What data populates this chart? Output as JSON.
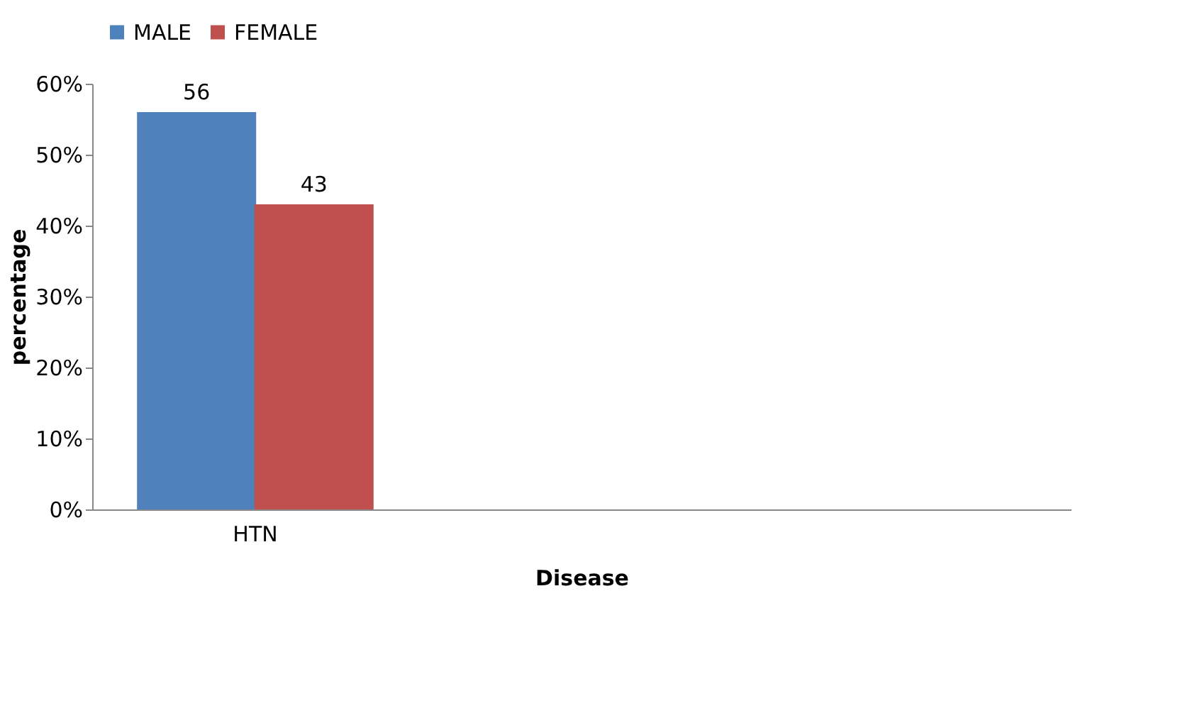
{
  "chart_data": {
    "type": "bar",
    "xlabel": "Disease",
    "ylabel": "percentage",
    "categories": [
      "HTN",
      null,
      null
    ],
    "series": [
      {
        "name": "MALE",
        "color": "#4f81bd",
        "values": [
          56,
          null,
          null
        ]
      },
      {
        "name": "FEMALE",
        "color": "#c0504d",
        "values": [
          43,
          null,
          null
        ]
      }
    ],
    "ylim": [
      0,
      60
    ],
    "yticks": [
      {
        "value": 0,
        "label": "0%"
      },
      {
        "value": 10,
        "label": "10%"
      },
      {
        "value": 20,
        "label": "20%"
      },
      {
        "value": 30,
        "label": "30%"
      },
      {
        "value": 40,
        "label": "40%"
      },
      {
        "value": 50,
        "label": "50%"
      },
      {
        "value": 60,
        "label": "60%"
      }
    ],
    "data_labels": true,
    "legend": "top",
    "grid": false
  }
}
